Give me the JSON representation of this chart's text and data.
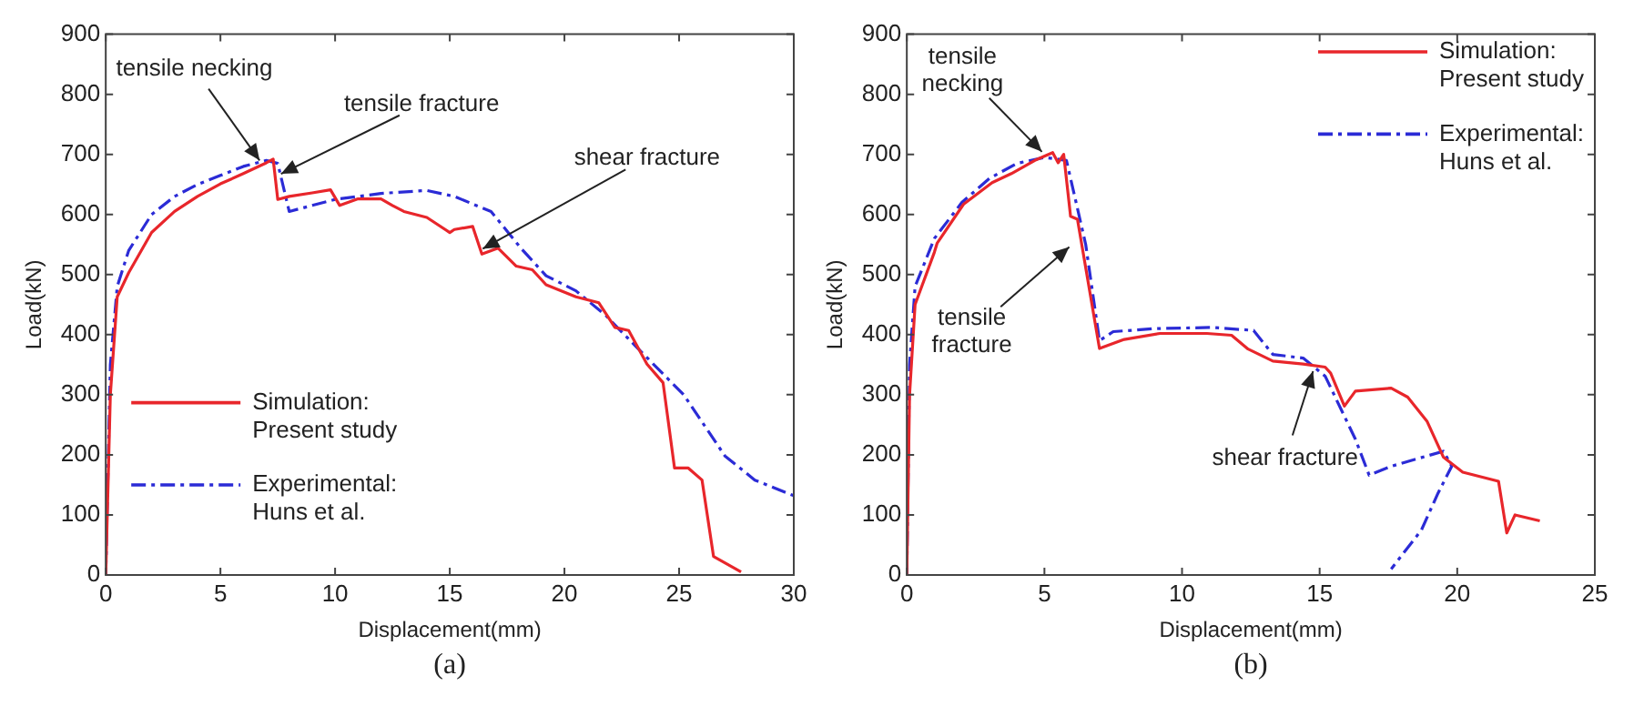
{
  "chart_data": [
    {
      "type": "line",
      "xlabel": "Displacement(mm)",
      "ylabel": "Load(kN)",
      "xlim": [
        0,
        30
      ],
      "xticks": [
        0,
        5,
        10,
        15,
        20,
        25,
        30
      ],
      "ylim": [
        0,
        900
      ],
      "yticks": [
        0,
        100,
        200,
        300,
        400,
        500,
        600,
        700,
        800,
        900
      ],
      "grid": false,
      "legend": "bottom left",
      "marker": "none",
      "annotations": [
        {
          "text": "tensile necking",
          "x": 6.8,
          "y": 685
        },
        {
          "text": "tensile fracture",
          "x": 7.5,
          "y": 665
        },
        {
          "text": "shear fracture",
          "x": 16.3,
          "y": 540
        },
        "(a)"
      ],
      "series": [
        {
          "name": "Simulation: Present study",
          "type": "line",
          "color": "#e8262b",
          "line_style": "solid",
          "x": [
            0,
            0.2,
            0.5,
            1,
            2,
            3,
            4,
            5,
            6,
            7,
            7.3,
            7.5,
            8,
            9,
            9.8,
            10.2,
            11,
            12,
            12.5,
            13,
            14,
            15,
            15.2,
            16,
            16.4,
            17.1,
            17.9,
            18.6,
            19.2,
            20.5,
            21.5,
            22.2,
            22.8,
            23.6,
            24.3,
            24.8,
            25.4,
            26,
            26.5,
            27.7
          ],
          "values": [
            0,
            300,
            463,
            503,
            570,
            605,
            630,
            651,
            668,
            686,
            692,
            625,
            630,
            636,
            641,
            615,
            626,
            626,
            615,
            605,
            595,
            570,
            575,
            580,
            534,
            544,
            514,
            508,
            483,
            463,
            453,
            412,
            407,
            351,
            320,
            178,
            178,
            158,
            31,
            5
          ]
        },
        {
          "name": "Experimental: Huns et al.",
          "type": "line",
          "color": "#2b2bd6",
          "line_style": "dashed",
          "x": [
            0,
            0.2,
            0.5,
            1,
            2,
            3,
            4,
            5,
            6,
            7,
            7.5,
            8,
            9,
            10,
            12,
            14,
            15.2,
            16.8,
            18.1,
            19.2,
            20.5,
            21.8,
            23.1,
            25.2,
            27,
            28.3,
            30
          ],
          "values": [
            0,
            350,
            480,
            540,
            600,
            630,
            650,
            665,
            680,
            690,
            685,
            605,
            615,
            625,
            635,
            640,
            630,
            605,
            544,
            498,
            473,
            432,
            381,
            300,
            198,
            158,
            132
          ]
        }
      ]
    },
    {
      "type": "line",
      "xlabel": "Displacement(mm)",
      "ylabel": "Load(kN)",
      "xlim": [
        0,
        25
      ],
      "xticks": [
        0,
        5,
        10,
        15,
        20,
        25
      ],
      "ylim": [
        0,
        900
      ],
      "yticks": [
        0,
        100,
        200,
        300,
        400,
        500,
        600,
        700,
        800,
        900
      ],
      "grid": false,
      "legend": "top right",
      "marker": "none",
      "annotations": [
        {
          "text": "tensile necking",
          "x": 5,
          "y": 700
        },
        {
          "text": "tensile fracture",
          "x": 6,
          "y": 550
        },
        {
          "text": "shear fracture",
          "x": 14.8,
          "y": 345
        },
        "(b)"
      ],
      "series": [
        {
          "name": "Simulation: Present study",
          "type": "line",
          "color": "#e8262b",
          "line_style": "solid",
          "x": [
            0,
            0.1,
            0.3,
            1,
            1.1,
            2.06,
            3.1,
            3.8,
            4.65,
            5.3,
            5.5,
            5.7,
            5.95,
            6.2,
            7,
            7.9,
            9.2,
            10.9,
            11.8,
            12.4,
            13.3,
            14.4,
            15.2,
            15.4,
            15.9,
            16.3,
            17.6,
            18.2,
            18.9,
            19.5,
            20.2,
            21.5,
            21.8,
            22.1,
            23
          ],
          "values": [
            0,
            300,
            450,
            537,
            552,
            617,
            653,
            668,
            690,
            703,
            686,
            700,
            597,
            592,
            377,
            392,
            402,
            402,
            399,
            376,
            356,
            351,
            346,
            336,
            281,
            306,
            311,
            296,
            256,
            196,
            171,
            156,
            70,
            100,
            90
          ]
        },
        {
          "name": "Experimental: Huns et al.",
          "type": "line",
          "color": "#2b2bd6",
          "line_style": "dashed",
          "x": [
            0,
            0.1,
            0.3,
            1,
            2,
            3,
            4,
            5,
            5.8,
            6.5,
            7,
            7.5,
            9,
            11.1,
            12.6,
            13.3,
            14.4,
            15.2,
            16.3,
            16.8,
            17.6,
            19.5,
            19.8,
            19.3,
            18.7,
            17.6
          ],
          "values": [
            0,
            350,
            480,
            560,
            620,
            660,
            685,
            695,
            690,
            550,
            390,
            405,
            410,
            412,
            407,
            367,
            361,
            331,
            226,
            166,
            181,
            206,
            181,
            136,
            75,
            10
          ]
        }
      ]
    }
  ]
}
